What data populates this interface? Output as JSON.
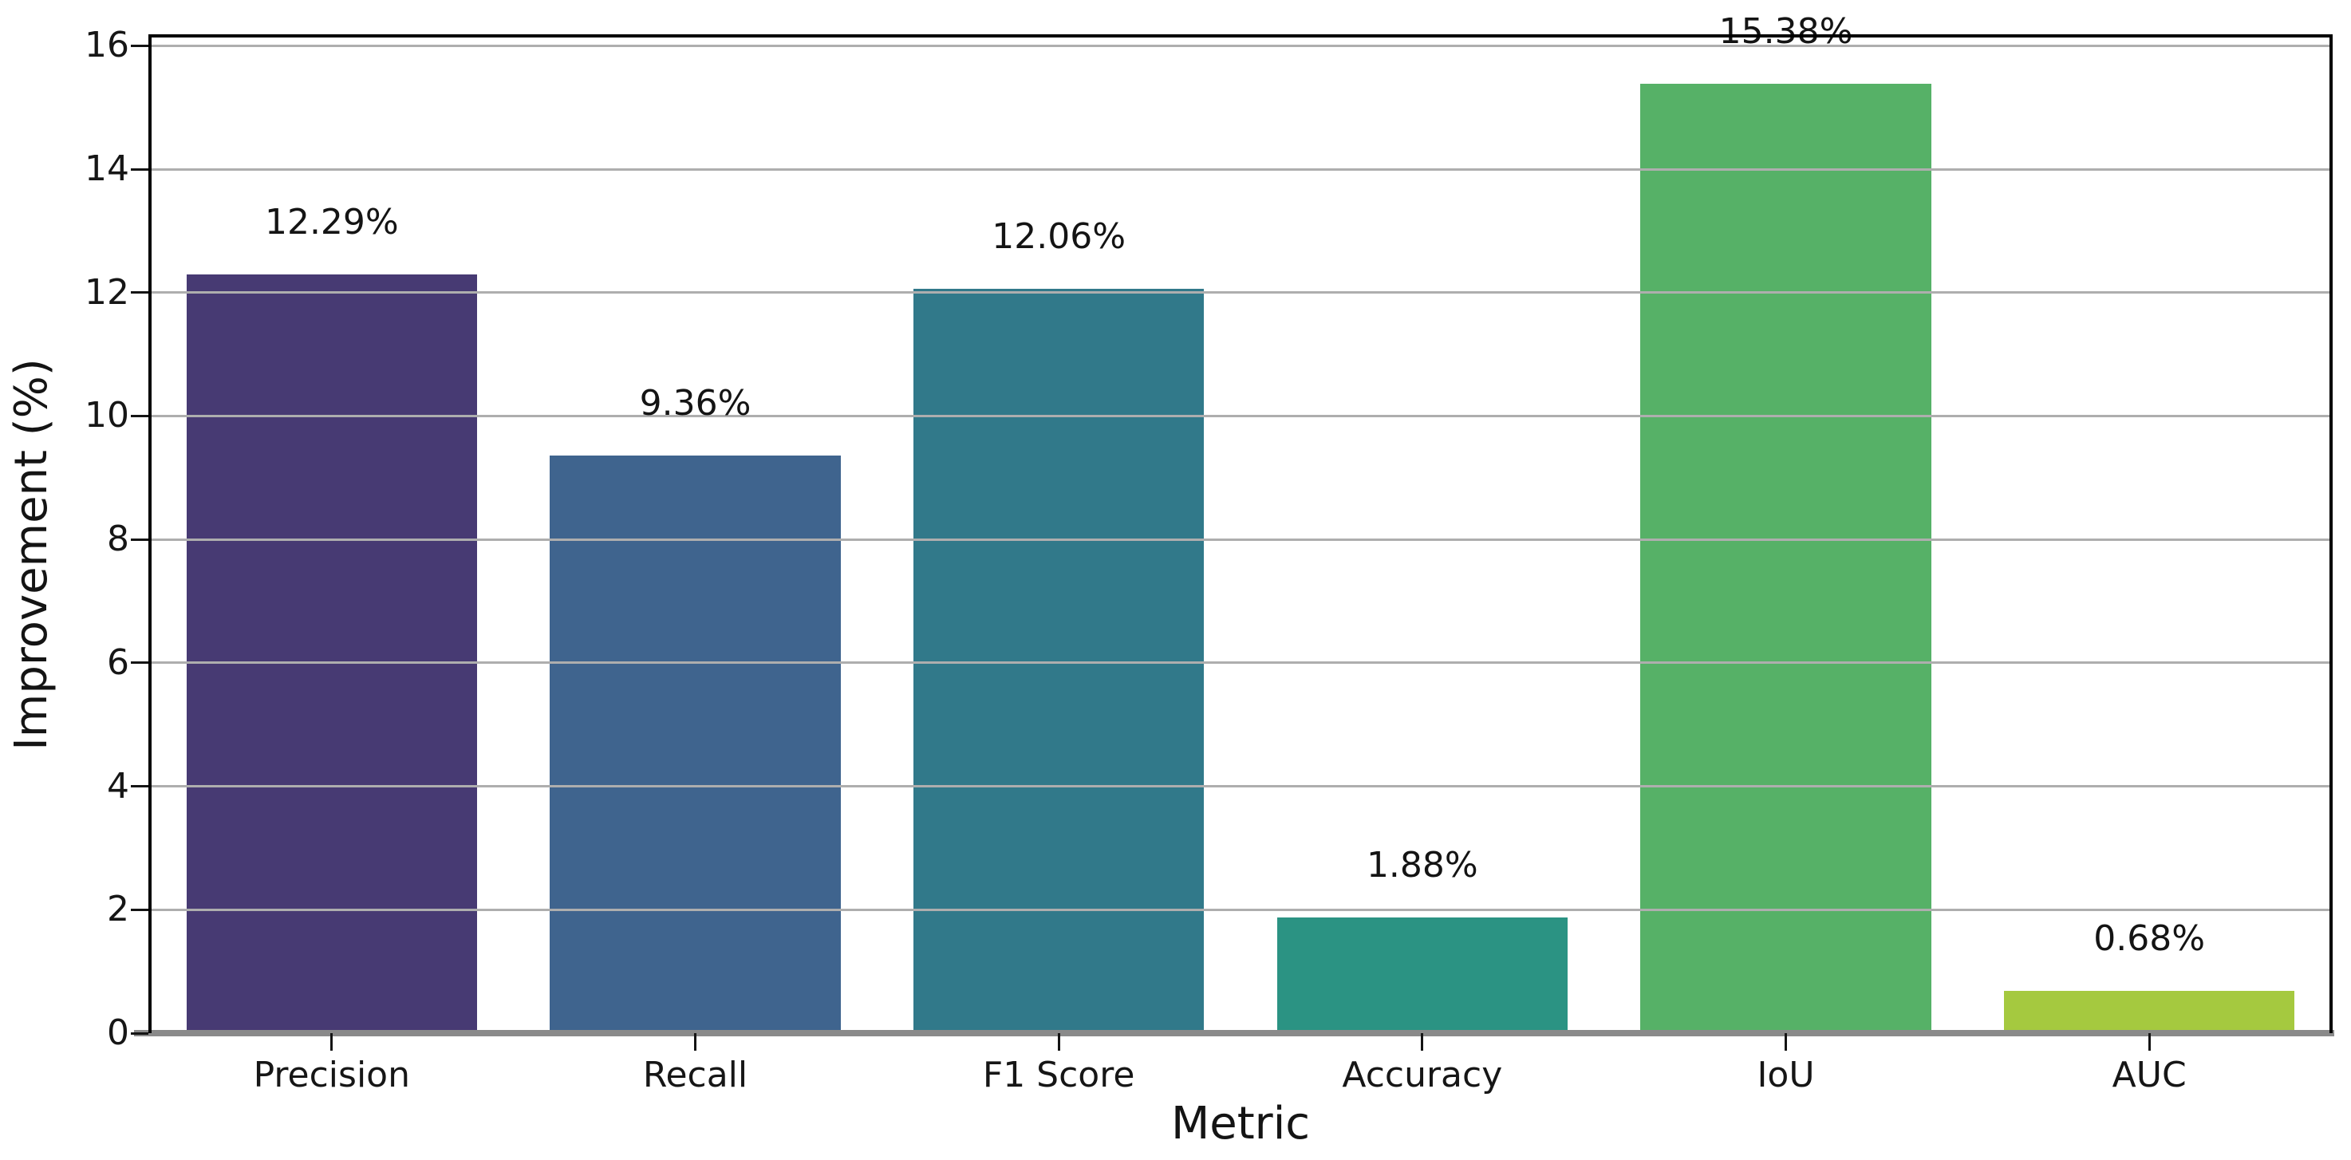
{
  "chart_data": {
    "type": "bar",
    "title": "",
    "xlabel": "Metric",
    "ylabel": "Improvement (%)",
    "categories": [
      "Precision",
      "Recall",
      "F1 Score",
      "Accuracy",
      "IoU",
      "AUC"
    ],
    "values": [
      12.29,
      9.36,
      12.06,
      1.88,
      15.38,
      0.68
    ],
    "value_labels": [
      "12.29%",
      "9.36%",
      "12.06%",
      "1.88%",
      "15.38%",
      "0.68%"
    ],
    "bar_colors": [
      "#473a73",
      "#3f648e",
      "#31798a",
      "#2b9383",
      "#56b167",
      "#a5c93f"
    ],
    "yticks": [
      0,
      2,
      4,
      6,
      8,
      10,
      12,
      14,
      16
    ],
    "ytick_labels": [
      "0",
      "2",
      "4",
      "6",
      "8",
      "10",
      "12",
      "14",
      "16"
    ],
    "ylim": [
      0,
      16.16
    ],
    "bar_width_fraction": 0.8,
    "grid": true,
    "grid_on_top_of_bars": true,
    "legend_position": "none"
  },
  "style": {
    "background_color": "#ffffff",
    "grid_color": "#aeaeae",
    "spine_color": "#000000",
    "baseline_color": "#8a8a8a",
    "text_color": "#161616"
  }
}
